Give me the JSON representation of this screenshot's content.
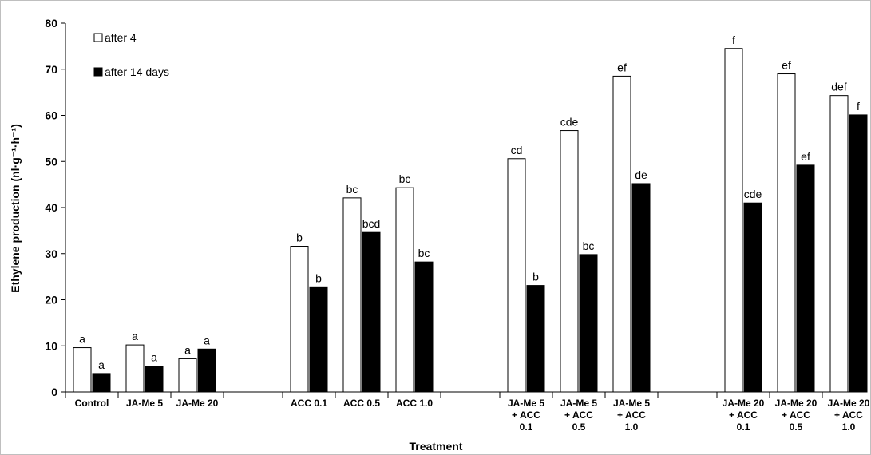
{
  "chart_data": {
    "type": "bar",
    "title": "",
    "xlabel": "Treatment",
    "ylabel": "Ethylene production (nl·g⁻¹·h⁻¹)",
    "ylim": [
      0,
      80
    ],
    "yticks": [
      "0",
      "10",
      "20",
      "30",
      "40",
      "50",
      "60",
      "70",
      "80"
    ],
    "grid": false,
    "legend_position": "top-left",
    "colors": {
      "after_4": "#ffffff",
      "after_14_days": "#000000"
    },
    "groups": [
      {
        "categories": [
          {
            "label": [
              "Control"
            ],
            "values": [
              9.6,
              4.0
            ],
            "sig": [
              "a",
              "a"
            ]
          },
          {
            "label": [
              "JA-Me 5"
            ],
            "values": [
              10.2,
              5.6
            ],
            "sig": [
              "a",
              "a"
            ]
          },
          {
            "label": [
              "JA-Me 20"
            ],
            "values": [
              7.2,
              9.3
            ],
            "sig": [
              "a",
              "a"
            ]
          }
        ]
      },
      {
        "categories": [
          {
            "label": [
              "ACC 0.1"
            ],
            "values": [
              31.6,
              22.8
            ],
            "sig": [
              "b",
              "b"
            ]
          },
          {
            "label": [
              "ACC 0.5"
            ],
            "values": [
              42.1,
              34.6
            ],
            "sig": [
              "bc",
              "bcd"
            ]
          },
          {
            "label": [
              "ACC 1.0"
            ],
            "values": [
              44.3,
              28.2
            ],
            "sig": [
              "bc",
              "bc"
            ]
          }
        ]
      },
      {
        "categories": [
          {
            "label": [
              "JA-Me 5",
              "+ ACC",
              "0.1"
            ],
            "values": [
              50.6,
              23.1
            ],
            "sig": [
              "cd",
              "b"
            ]
          },
          {
            "label": [
              "JA-Me 5",
              "+ ACC",
              "0.5"
            ],
            "values": [
              56.7,
              29.8
            ],
            "sig": [
              "cde",
              "bc"
            ]
          },
          {
            "label": [
              "JA-Me 5",
              "+ ACC",
              "1.0"
            ],
            "values": [
              68.5,
              45.2
            ],
            "sig": [
              "ef",
              "de"
            ]
          }
        ]
      },
      {
        "categories": [
          {
            "label": [
              "JA-Me 20",
              "+ ACC",
              "0.1"
            ],
            "values": [
              74.5,
              41.0
            ],
            "sig": [
              "f",
              "cde"
            ]
          },
          {
            "label": [
              "JA-Me 20",
              "+ ACC",
              "0.5"
            ],
            "values": [
              69.0,
              49.2
            ],
            "sig": [
              "ef",
              "ef"
            ]
          },
          {
            "label": [
              "JA-Me 20",
              "+ ACC",
              "1.0"
            ],
            "values": [
              64.3,
              60.1
            ],
            "sig": [
              "def",
              "f"
            ]
          }
        ]
      }
    ],
    "series": [
      {
        "name": "after 4",
        "color": "#ffffff"
      },
      {
        "name": "after 14 days",
        "color": "#000000"
      }
    ]
  }
}
